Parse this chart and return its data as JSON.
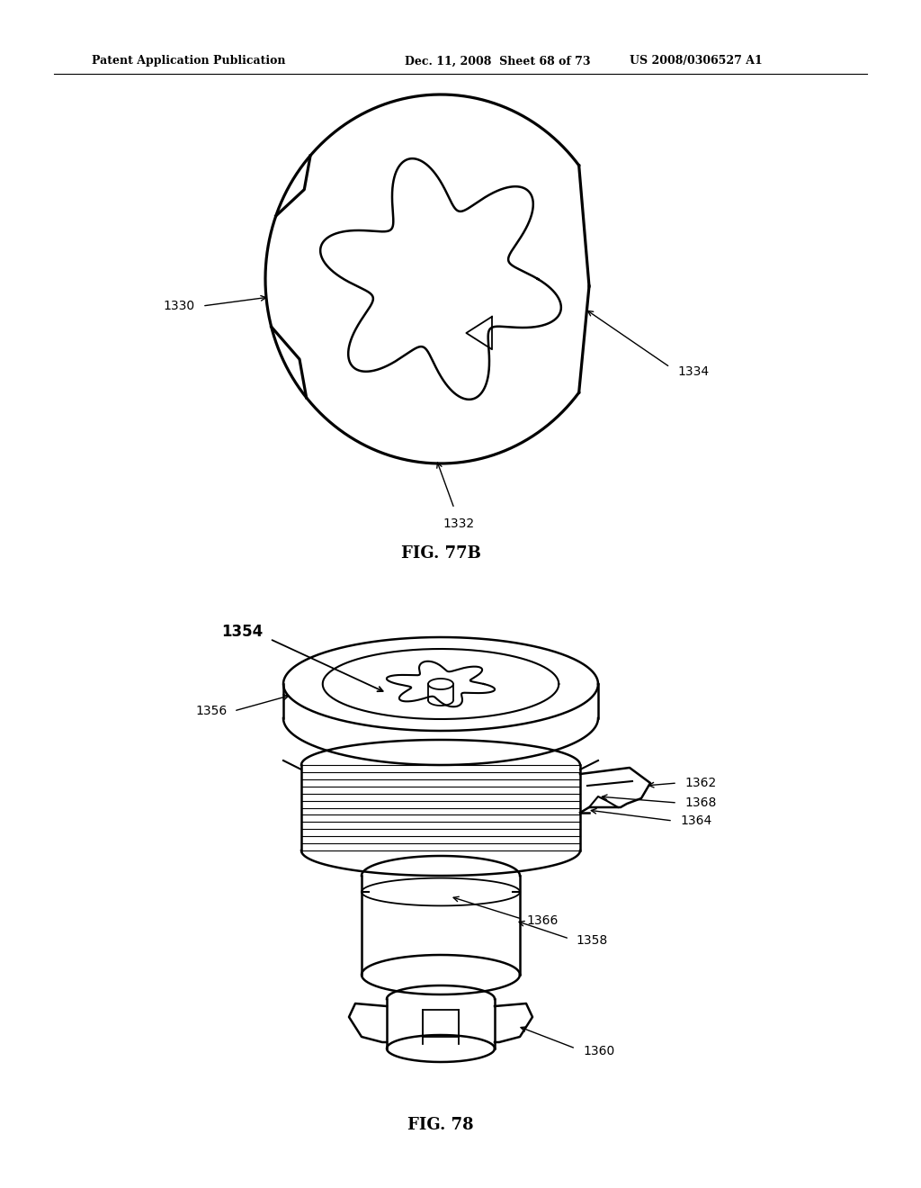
{
  "background_color": "#ffffff",
  "header_text_left": "Patent Application Publication",
  "header_text_mid": "Dec. 11, 2008  Sheet 68 of 73",
  "header_text_right": "US 2008/0306527 A1",
  "fig77b_label": "FIG. 77B",
  "fig78_label": "FIG. 78",
  "line_color": "#000000",
  "line_width": 1.8,
  "label_fontsize": 10,
  "header_fontsize": 9,
  "fig_label_fontsize": 13
}
